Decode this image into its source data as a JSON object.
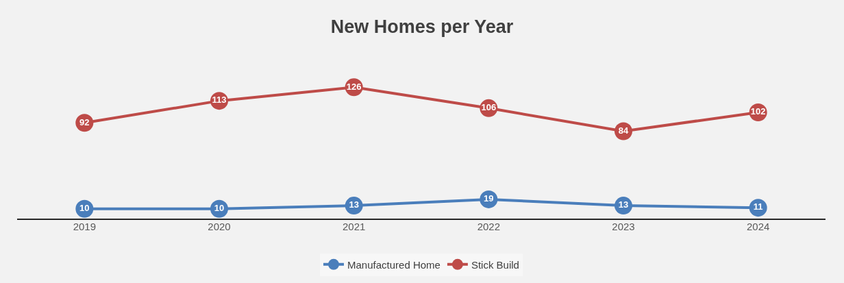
{
  "chart_data": {
    "type": "line",
    "title": "New Homes per Year",
    "categories": [
      "2019",
      "2020",
      "2021",
      "2022",
      "2023",
      "2024"
    ],
    "series": [
      {
        "name": "Manufactured Home",
        "color": "#4a7ebb",
        "values": [
          10,
          10,
          13,
          19,
          13,
          11
        ]
      },
      {
        "name": "Stick Build",
        "color": "#be4b48",
        "values": [
          92,
          113,
          126,
          106,
          84,
          102
        ]
      }
    ],
    "tick_labels": "x",
    "legend": "bottom",
    "marker": "circle",
    "line_style": "solid",
    "data_labels": true
  }
}
